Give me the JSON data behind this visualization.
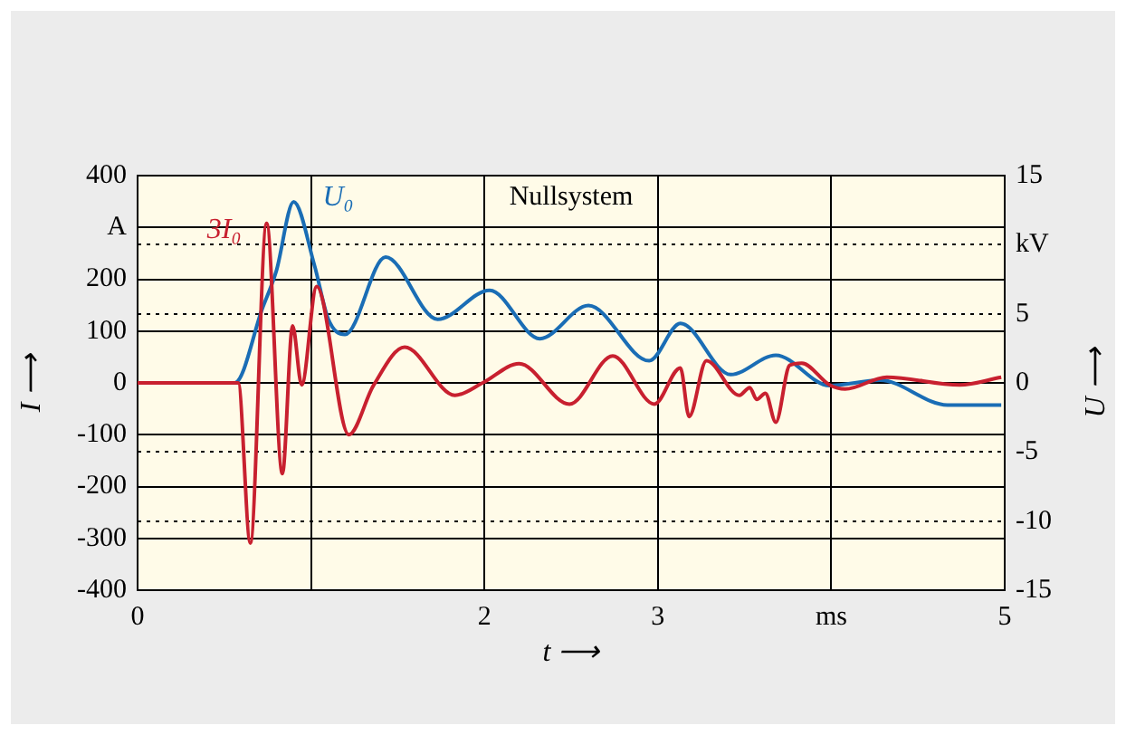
{
  "chart_data": {
    "type": "line",
    "title": "Nullsystem",
    "xlabel": "t ⟶",
    "ylabel": "I ⟶",
    "y2label": "U ⟶",
    "xlim": [
      0,
      5
    ],
    "xticks": [
      0,
      {
        "value": 1,
        "label": null
      },
      2,
      3,
      {
        "value": 4,
        "label": "ms"
      },
      5
    ],
    "ylim": [
      -400,
      400
    ],
    "yticks": [
      -400,
      -300,
      -200,
      -100,
      0,
      100,
      200,
      {
        "value": 300,
        "label": "A"
      },
      400
    ],
    "y2lim": [
      -15,
      15
    ],
    "y2ticks": [
      -15,
      -10,
      -5,
      0,
      5,
      {
        "value": 10,
        "label": "kV"
      },
      15
    ],
    "grid": true,
    "legend": false,
    "marker": "none",
    "line_style": "solid",
    "series": [
      {
        "name": "3I₀",
        "color": "#c8202f",
        "x": [
          0,
          0.58,
          0.65,
          0.744,
          0.835,
          0.894,
          0.946,
          1.033,
          1.218,
          1.36,
          1.54,
          1.83,
          1.99,
          2.2,
          2.49,
          2.74,
          2.98,
          3.13,
          3.18,
          3.28,
          3.47,
          3.53,
          3.57,
          3.62,
          3.68,
          3.76,
          3.83,
          3.99,
          4.08,
          4.32,
          4.74,
          4.98
        ],
        "values": [
          0,
          0,
          -309,
          308,
          -175,
          110,
          -4,
          186,
          -100,
          -5,
          69,
          -24,
          0,
          37,
          -41,
          52,
          -41,
          29,
          -65,
          43,
          -24,
          -9,
          -32,
          -20,
          -76,
          34,
          38,
          -4,
          -12,
          11,
          -4,
          11
        ]
      },
      {
        "name": "U₀",
        "color": "#1a6db5",
        "axis": "y2",
        "x": [
          0,
          0.56,
          0.72,
          0.8,
          0.9,
          1.02,
          1.1,
          1.196,
          1.43,
          1.73,
          2.03,
          2.32,
          2.6,
          2.95,
          3.13,
          3.42,
          3.68,
          3.99,
          4.28,
          4.67,
          4.98
        ],
        "values": [
          0,
          0,
          5.4,
          8.1,
          13.1,
          8.5,
          4.6,
          3.5,
          9.1,
          4.6,
          6.7,
          3.2,
          5.6,
          1.6,
          4.3,
          0.6,
          2.0,
          -0.2,
          0.2,
          -1.6,
          -1.6
        ]
      }
    ]
  }
}
